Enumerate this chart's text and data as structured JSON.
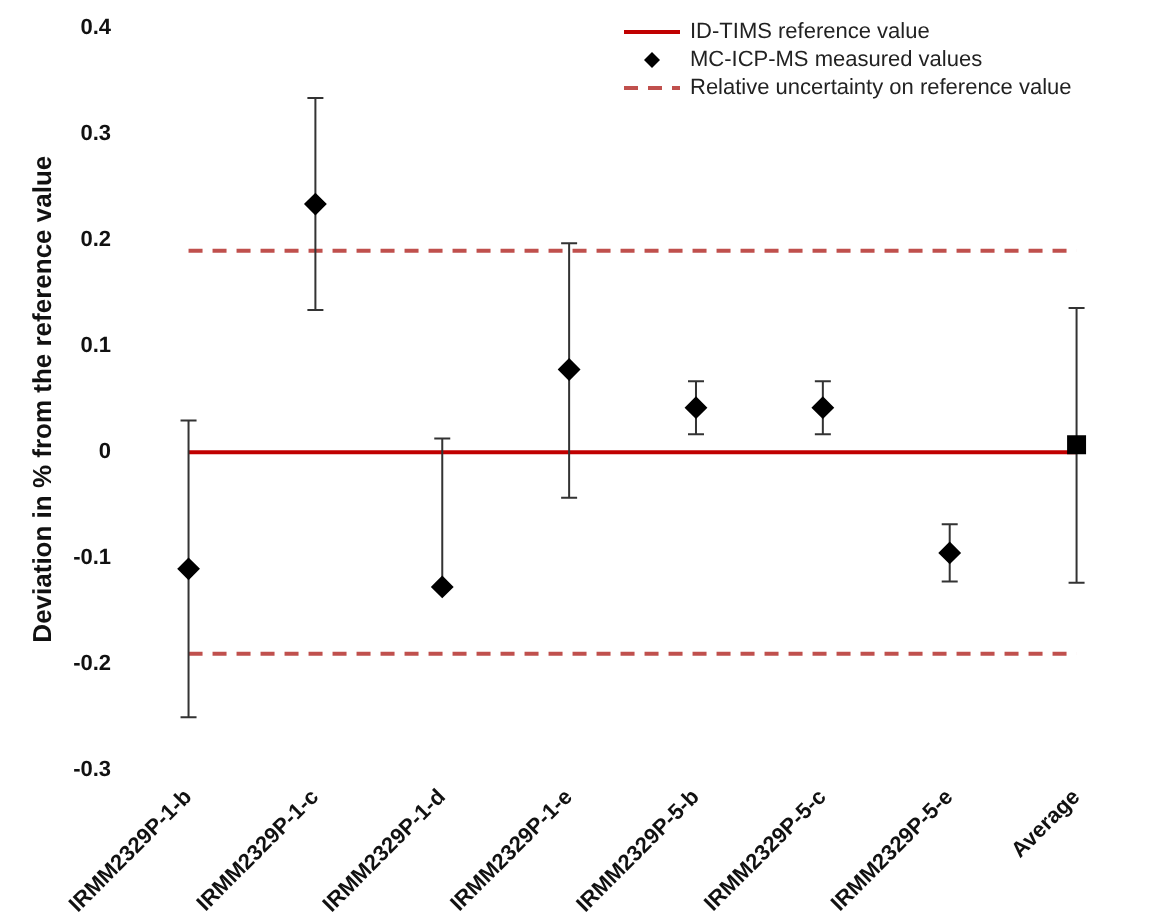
{
  "chart_data": {
    "type": "scatter",
    "ylabel": "Deviation in % from the reference value",
    "categories": [
      "IRMM2329P-1-b",
      "IRMM2329P-1-c",
      "IRMM2329P-1-d",
      "IRMM2329P-1-e",
      "IRMM2329P-5-b",
      "IRMM2329P-5-c",
      "IRMM2329P-5-e",
      "Average"
    ],
    "series": [
      {
        "name": "MC-ICP-MS measured values",
        "color": "#000000",
        "marker": "diamond",
        "values": [
          -0.11,
          0.234,
          -0.127,
          0.078,
          0.042,
          0.042,
          -0.095,
          null
        ],
        "errors": [
          0.14,
          0.1,
          [
            -0.127,
            0.013
          ],
          [
            -0.043,
            0.197
          ],
          0.025,
          0.025,
          0.027,
          null
        ]
      },
      {
        "color": "#000000",
        "marker": "square",
        "values": [
          null,
          null,
          null,
          null,
          null,
          null,
          null,
          0.007
        ],
        "errors": [
          null,
          null,
          null,
          null,
          null,
          null,
          null,
          [
            -0.123,
            0.136
          ]
        ]
      }
    ],
    "ylim": [
      -0.3,
      0.4
    ],
    "yticks": [
      -0.3,
      -0.2,
      -0.1,
      0,
      0.1,
      0.2,
      0.3,
      0.4
    ],
    "ref_lines": [
      {
        "axis": "y",
        "value": 0,
        "label": "ID-TIMS reference value",
        "color": "#c00000",
        "line_style": "solid"
      },
      {
        "axis": "y",
        "value": 0.19,
        "label": "Relative uncertainty on reference value",
        "color": "#c0504d",
        "line_style": "dashed"
      },
      {
        "axis": "y",
        "value": -0.19,
        "color": "#c0504d",
        "line_style": "dashed"
      }
    ],
    "grid": false,
    "legend": "top right"
  }
}
